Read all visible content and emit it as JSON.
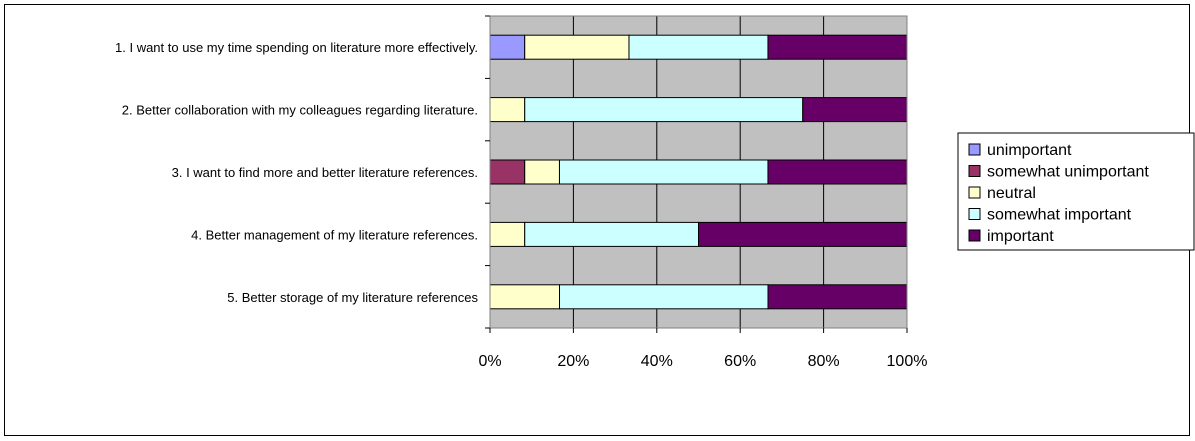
{
  "chart_data": {
    "type": "bar",
    "orientation": "horizontal",
    "stacked": "percent",
    "categories": [
      "1. I want to use my time spending on literature more effectively.",
      "2. Better collaboration with my colleagues regarding literature.",
      "3. I want to find more and better literature references.",
      "4. Better management of my literature references.",
      "5. Better storage of my literature references"
    ],
    "series": [
      {
        "name": "unimportant",
        "color": "#9999ff",
        "values": [
          8.33,
          0,
          0,
          0,
          0
        ]
      },
      {
        "name": "somewhat unimportant",
        "color": "#993366",
        "values": [
          0,
          0,
          8.33,
          0,
          0
        ]
      },
      {
        "name": "neutral",
        "color": "#ffffcc",
        "values": [
          25,
          8.33,
          8.33,
          8.33,
          16.67
        ]
      },
      {
        "name": "somewhat important",
        "color": "#ccffff",
        "values": [
          33.33,
          66.67,
          50,
          41.67,
          50
        ]
      },
      {
        "name": "important",
        "color": "#660066",
        "values": [
          33.33,
          25,
          33.33,
          50,
          33.33
        ]
      }
    ],
    "xticks": [
      "0%",
      "20%",
      "40%",
      "60%",
      "80%",
      "100%"
    ],
    "xlim": [
      0,
      100
    ],
    "grid": true,
    "plot_background": "#c0c0c0",
    "legend_position": "right"
  }
}
